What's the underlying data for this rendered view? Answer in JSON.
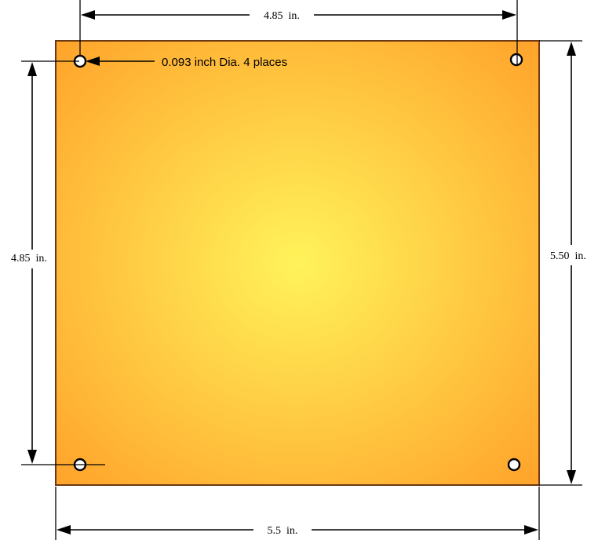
{
  "dimensions": {
    "top_hole_spacing": "4.85  in.",
    "left_hole_spacing": "4.85  in.",
    "right_board_height": "5.50  in.",
    "bottom_board_width": "5.5  in."
  },
  "callout": {
    "hole_note": "0.093 inch Dia. 4 places"
  },
  "colors": {
    "board_center": "#fff35a",
    "board_edge": "#ffa12a",
    "board_outline": "#6b3a14",
    "lines": "#000000"
  }
}
